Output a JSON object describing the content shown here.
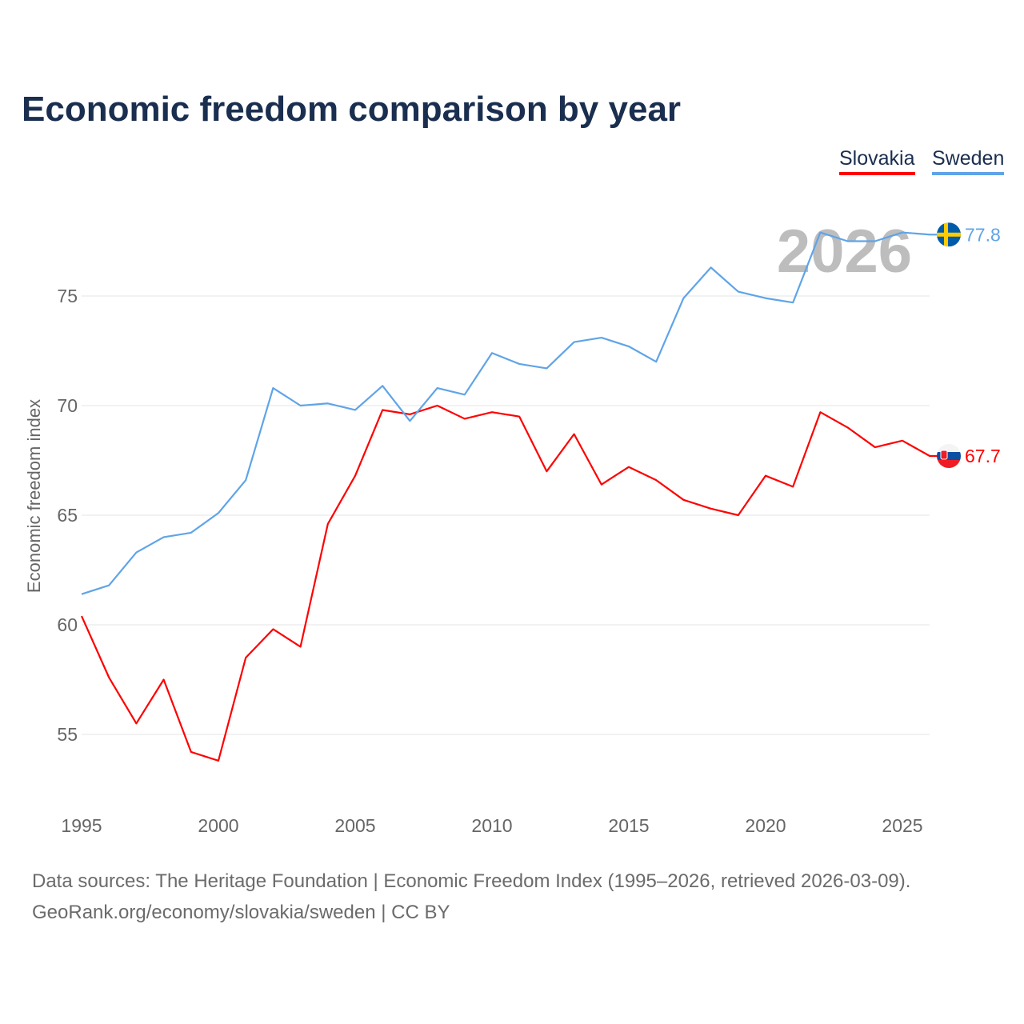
{
  "chart_data": {
    "type": "line",
    "title": "Economic freedom comparison by year",
    "xlabel": "",
    "ylabel": "Economic freedom index",
    "x": [
      1995,
      1996,
      1997,
      1998,
      1999,
      2000,
      2001,
      2002,
      2003,
      2004,
      2005,
      2006,
      2007,
      2008,
      2009,
      2010,
      2011,
      2012,
      2013,
      2014,
      2015,
      2016,
      2017,
      2018,
      2019,
      2020,
      2021,
      2022,
      2023,
      2024,
      2025,
      2026
    ],
    "xlim": [
      1995,
      2026
    ],
    "ylim": [
      52,
      80
    ],
    "xticks": [
      "1995",
      "2000",
      "2005",
      "2010",
      "2015",
      "2020",
      "2025"
    ],
    "yticks": [
      "55",
      "60",
      "65",
      "70",
      "75"
    ],
    "grid": true,
    "legend": "top-right",
    "year_watermark": "2026",
    "series": [
      {
        "name": "Slovakia",
        "color": "#ff0000",
        "end_label": "67.7",
        "values": [
          60.4,
          57.6,
          55.5,
          57.5,
          54.2,
          53.8,
          58.5,
          59.8,
          59.0,
          64.6,
          66.8,
          69.8,
          69.6,
          70.0,
          69.4,
          69.7,
          69.5,
          67.0,
          68.7,
          66.4,
          67.2,
          66.6,
          65.7,
          65.3,
          65.0,
          66.8,
          66.3,
          69.7,
          69.0,
          68.1,
          68.4,
          67.7
        ]
      },
      {
        "name": "Sweden",
        "color": "#5fa4e8",
        "end_label": "77.8",
        "values": [
          61.4,
          61.8,
          63.3,
          64.0,
          64.2,
          65.1,
          66.6,
          70.8,
          70.0,
          70.1,
          69.8,
          70.9,
          69.3,
          70.8,
          70.5,
          72.4,
          71.9,
          71.7,
          72.9,
          73.1,
          72.7,
          72.0,
          74.9,
          76.3,
          75.2,
          74.9,
          74.7,
          77.9,
          77.5,
          77.5,
          77.9,
          77.8
        ]
      }
    ]
  },
  "footer": {
    "line1": "Data sources: The Heritage Foundation | Economic Freedom Index (1995–2026, retrieved 2026-03-09).",
    "line2": "GeoRank.org/economy/slovakia/sweden | CC BY"
  }
}
